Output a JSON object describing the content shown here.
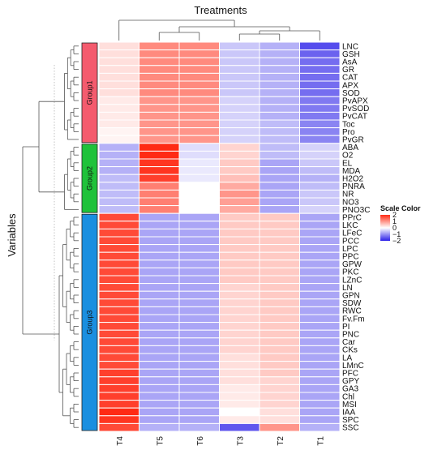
{
  "chart_data": {
    "type": "heatmap",
    "title": "Treatments",
    "ylabel": "Variables",
    "columns": [
      "T4",
      "T5",
      "T6",
      "T3",
      "T2",
      "T1"
    ],
    "rows": [
      "LNC",
      "GSH",
      "AsA",
      "GR",
      "CAT",
      "APX",
      "SOD",
      "PvAPX",
      "PvSOD",
      "PvCAT",
      "Toc",
      "Pro",
      "PvGR",
      "ABA",
      "O2",
      "EL",
      "MDA",
      "H2O2",
      "PNRA",
      "NR",
      "NO3",
      "PNO3C",
      "PPrC",
      "LKC",
      "LFeC",
      "PCC",
      "LPC",
      "PPC",
      "GPW",
      "PKC",
      "LZnC",
      "LN",
      "GPN",
      "SDW",
      "RWC",
      "Fv.Fm",
      "PI",
      "PNC",
      "Car",
      "CKs",
      "LA",
      "LMnC",
      "PFC",
      "GPY",
      "GA3",
      "Chl",
      "MSI",
      "IAA",
      "SPC",
      "SSC"
    ],
    "groups": [
      {
        "name": "Group1",
        "color": "#f45b6e",
        "start": 0,
        "end": 12
      },
      {
        "name": "Group2",
        "color": "#1fc23a",
        "start": 13,
        "end": 21
      },
      {
        "name": "Group3",
        "color": "#1a8fe0",
        "start": 22,
        "end": 49
      }
    ],
    "values": [
      [
        0.3,
        1.1,
        1.1,
        -0.5,
        -0.7,
        -1.6
      ],
      [
        0.3,
        1.1,
        1.1,
        -0.5,
        -0.7,
        -1.4
      ],
      [
        0.3,
        1.1,
        1.1,
        -0.5,
        -0.7,
        -1.3
      ],
      [
        0.3,
        1.1,
        1.1,
        -0.5,
        -0.7,
        -1.3
      ],
      [
        0.3,
        1.1,
        1.1,
        -0.5,
        -0.7,
        -1.3
      ],
      [
        0.3,
        1.1,
        1.1,
        -0.5,
        -0.7,
        -1.3
      ],
      [
        0.3,
        1.1,
        1.1,
        -0.5,
        -0.7,
        -1.3
      ],
      [
        0.2,
        1.0,
        1.0,
        -0.4,
        -0.7,
        -1.2
      ],
      [
        0.2,
        1.0,
        1.0,
        -0.4,
        -0.7,
        -1.2
      ],
      [
        0.2,
        1.0,
        1.0,
        -0.4,
        -0.7,
        -1.2
      ],
      [
        0.2,
        1.0,
        1.0,
        -0.4,
        -0.6,
        -1.1
      ],
      [
        0.1,
        1.0,
        1.0,
        -0.4,
        -0.6,
        -1.1
      ],
      [
        0.1,
        1.0,
        1.0,
        -0.4,
        -0.6,
        -1.1
      ],
      [
        -0.7,
        2.0,
        -0.3,
        0.4,
        -0.6,
        -0.4
      ],
      [
        -0.7,
        2.0,
        -0.3,
        0.4,
        -0.6,
        -0.4
      ],
      [
        -0.7,
        1.9,
        -0.2,
        0.5,
        -0.8,
        -0.5
      ],
      [
        -0.7,
        1.9,
        -0.2,
        0.5,
        -0.8,
        -0.6
      ],
      [
        -0.6,
        1.8,
        -0.2,
        0.6,
        -0.8,
        -0.7
      ],
      [
        -0.6,
        1.2,
        0.0,
        0.8,
        -0.8,
        -0.6
      ],
      [
        -0.6,
        1.2,
        0.0,
        1.0,
        -0.8,
        -0.5
      ],
      [
        -0.6,
        1.2,
        0.0,
        0.9,
        -0.8,
        -0.5
      ],
      [
        -0.6,
        1.2,
        0.0,
        0.8,
        -0.8,
        -0.4
      ],
      [
        1.7,
        -0.8,
        -0.8,
        0.5,
        0.5,
        -0.8
      ],
      [
        1.7,
        -0.8,
        -0.8,
        0.5,
        0.5,
        -0.8
      ],
      [
        1.7,
        -0.8,
        -0.8,
        0.5,
        0.5,
        -0.8
      ],
      [
        1.7,
        -0.8,
        -0.8,
        0.5,
        0.5,
        -0.8
      ],
      [
        1.7,
        -0.8,
        -0.8,
        0.5,
        0.5,
        -0.8
      ],
      [
        1.7,
        -0.8,
        -0.8,
        0.5,
        0.5,
        -0.8
      ],
      [
        1.7,
        -0.8,
        -0.8,
        0.5,
        0.5,
        -0.8
      ],
      [
        1.7,
        -0.8,
        -0.8,
        0.5,
        0.5,
        -0.8
      ],
      [
        1.7,
        -0.8,
        -0.8,
        0.5,
        0.5,
        -0.8
      ],
      [
        1.7,
        -0.8,
        -0.8,
        0.4,
        0.5,
        -0.8
      ],
      [
        1.7,
        -0.8,
        -0.8,
        0.4,
        0.5,
        -0.8
      ],
      [
        1.7,
        -0.8,
        -0.8,
        0.4,
        0.5,
        -0.8
      ],
      [
        1.7,
        -0.8,
        -0.8,
        0.4,
        0.5,
        -0.8
      ],
      [
        1.7,
        -0.8,
        -0.8,
        0.4,
        0.5,
        -0.8
      ],
      [
        1.7,
        -0.8,
        -0.8,
        0.4,
        0.5,
        -0.8
      ],
      [
        1.7,
        -0.8,
        -0.8,
        0.4,
        0.5,
        -0.8
      ],
      [
        1.7,
        -0.8,
        -0.8,
        0.4,
        0.5,
        -0.8
      ],
      [
        1.7,
        -0.8,
        -0.8,
        0.4,
        0.5,
        -0.8
      ],
      [
        1.7,
        -0.8,
        -0.8,
        0.3,
        0.5,
        -0.8
      ],
      [
        1.7,
        -0.8,
        -0.8,
        0.3,
        0.5,
        -0.8
      ],
      [
        1.8,
        -0.8,
        -0.8,
        0.3,
        0.5,
        -0.8
      ],
      [
        1.8,
        -0.8,
        -0.8,
        0.3,
        0.4,
        -0.8
      ],
      [
        1.8,
        -0.8,
        -0.8,
        0.2,
        0.4,
        -0.8
      ],
      [
        1.8,
        -0.8,
        -0.8,
        0.2,
        0.4,
        -0.8
      ],
      [
        1.8,
        -0.8,
        -0.8,
        0.2,
        0.4,
        -0.8
      ],
      [
        2.0,
        -0.8,
        -0.8,
        0.0,
        0.3,
        -0.8
      ],
      [
        1.9,
        -0.8,
        -0.8,
        0.2,
        0.3,
        -0.8
      ],
      [
        1.7,
        -0.7,
        -0.7,
        -1.5,
        1.0,
        -0.7
      ]
    ],
    "legend": {
      "title": "Scale Color",
      "ticks": [
        2,
        1,
        0,
        -1,
        -2
      ],
      "range": [
        -2,
        2
      ],
      "colors": {
        "low": "#2b1fe8",
        "mid": "#ffffff",
        "high": "#ff2a14"
      },
      "placement": "right"
    }
  }
}
